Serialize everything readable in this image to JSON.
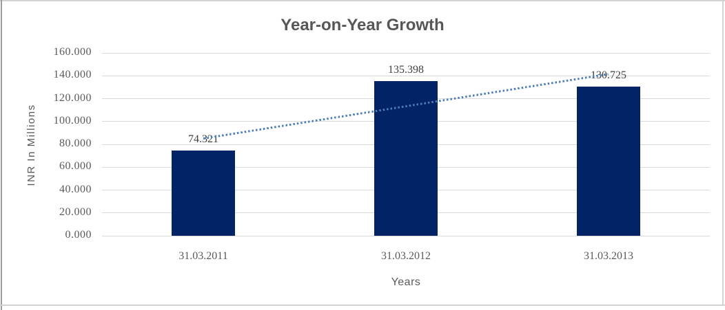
{
  "chart_data": {
    "type": "bar",
    "title": "Year-on-Year Growth",
    "xlabel": "Years",
    "ylabel": "INR In Millions",
    "categories": [
      "31.03.2011",
      "31.03.2012",
      "31.03.2013"
    ],
    "values": [
      74.321,
      135.398,
      130.725
    ],
    "data_labels": [
      "74.321",
      "135.398",
      "130.725"
    ],
    "y_ticks": [
      "160.000",
      "140.000",
      "120.000",
      "100.000",
      "80.000",
      "60.000",
      "40.000",
      "20.000",
      "0.000"
    ],
    "ylim": [
      0,
      160
    ],
    "grid": "horizontal-only",
    "legend_position": "none",
    "trendline": {
      "type": "linear",
      "style": "dotted",
      "start_value": 85.279,
      "end_value": 141.683
    }
  },
  "colors": {
    "background": "#ffffff",
    "bar": "#022365",
    "trendline": "#4a7ebb",
    "gridline": "#d9d9d9",
    "axis_text": "#595959",
    "title_text": "#575757",
    "data_label_text": "#3f3f3f",
    "border_light": "#d2d2d2",
    "border_dark": "#9b9b9b"
  }
}
